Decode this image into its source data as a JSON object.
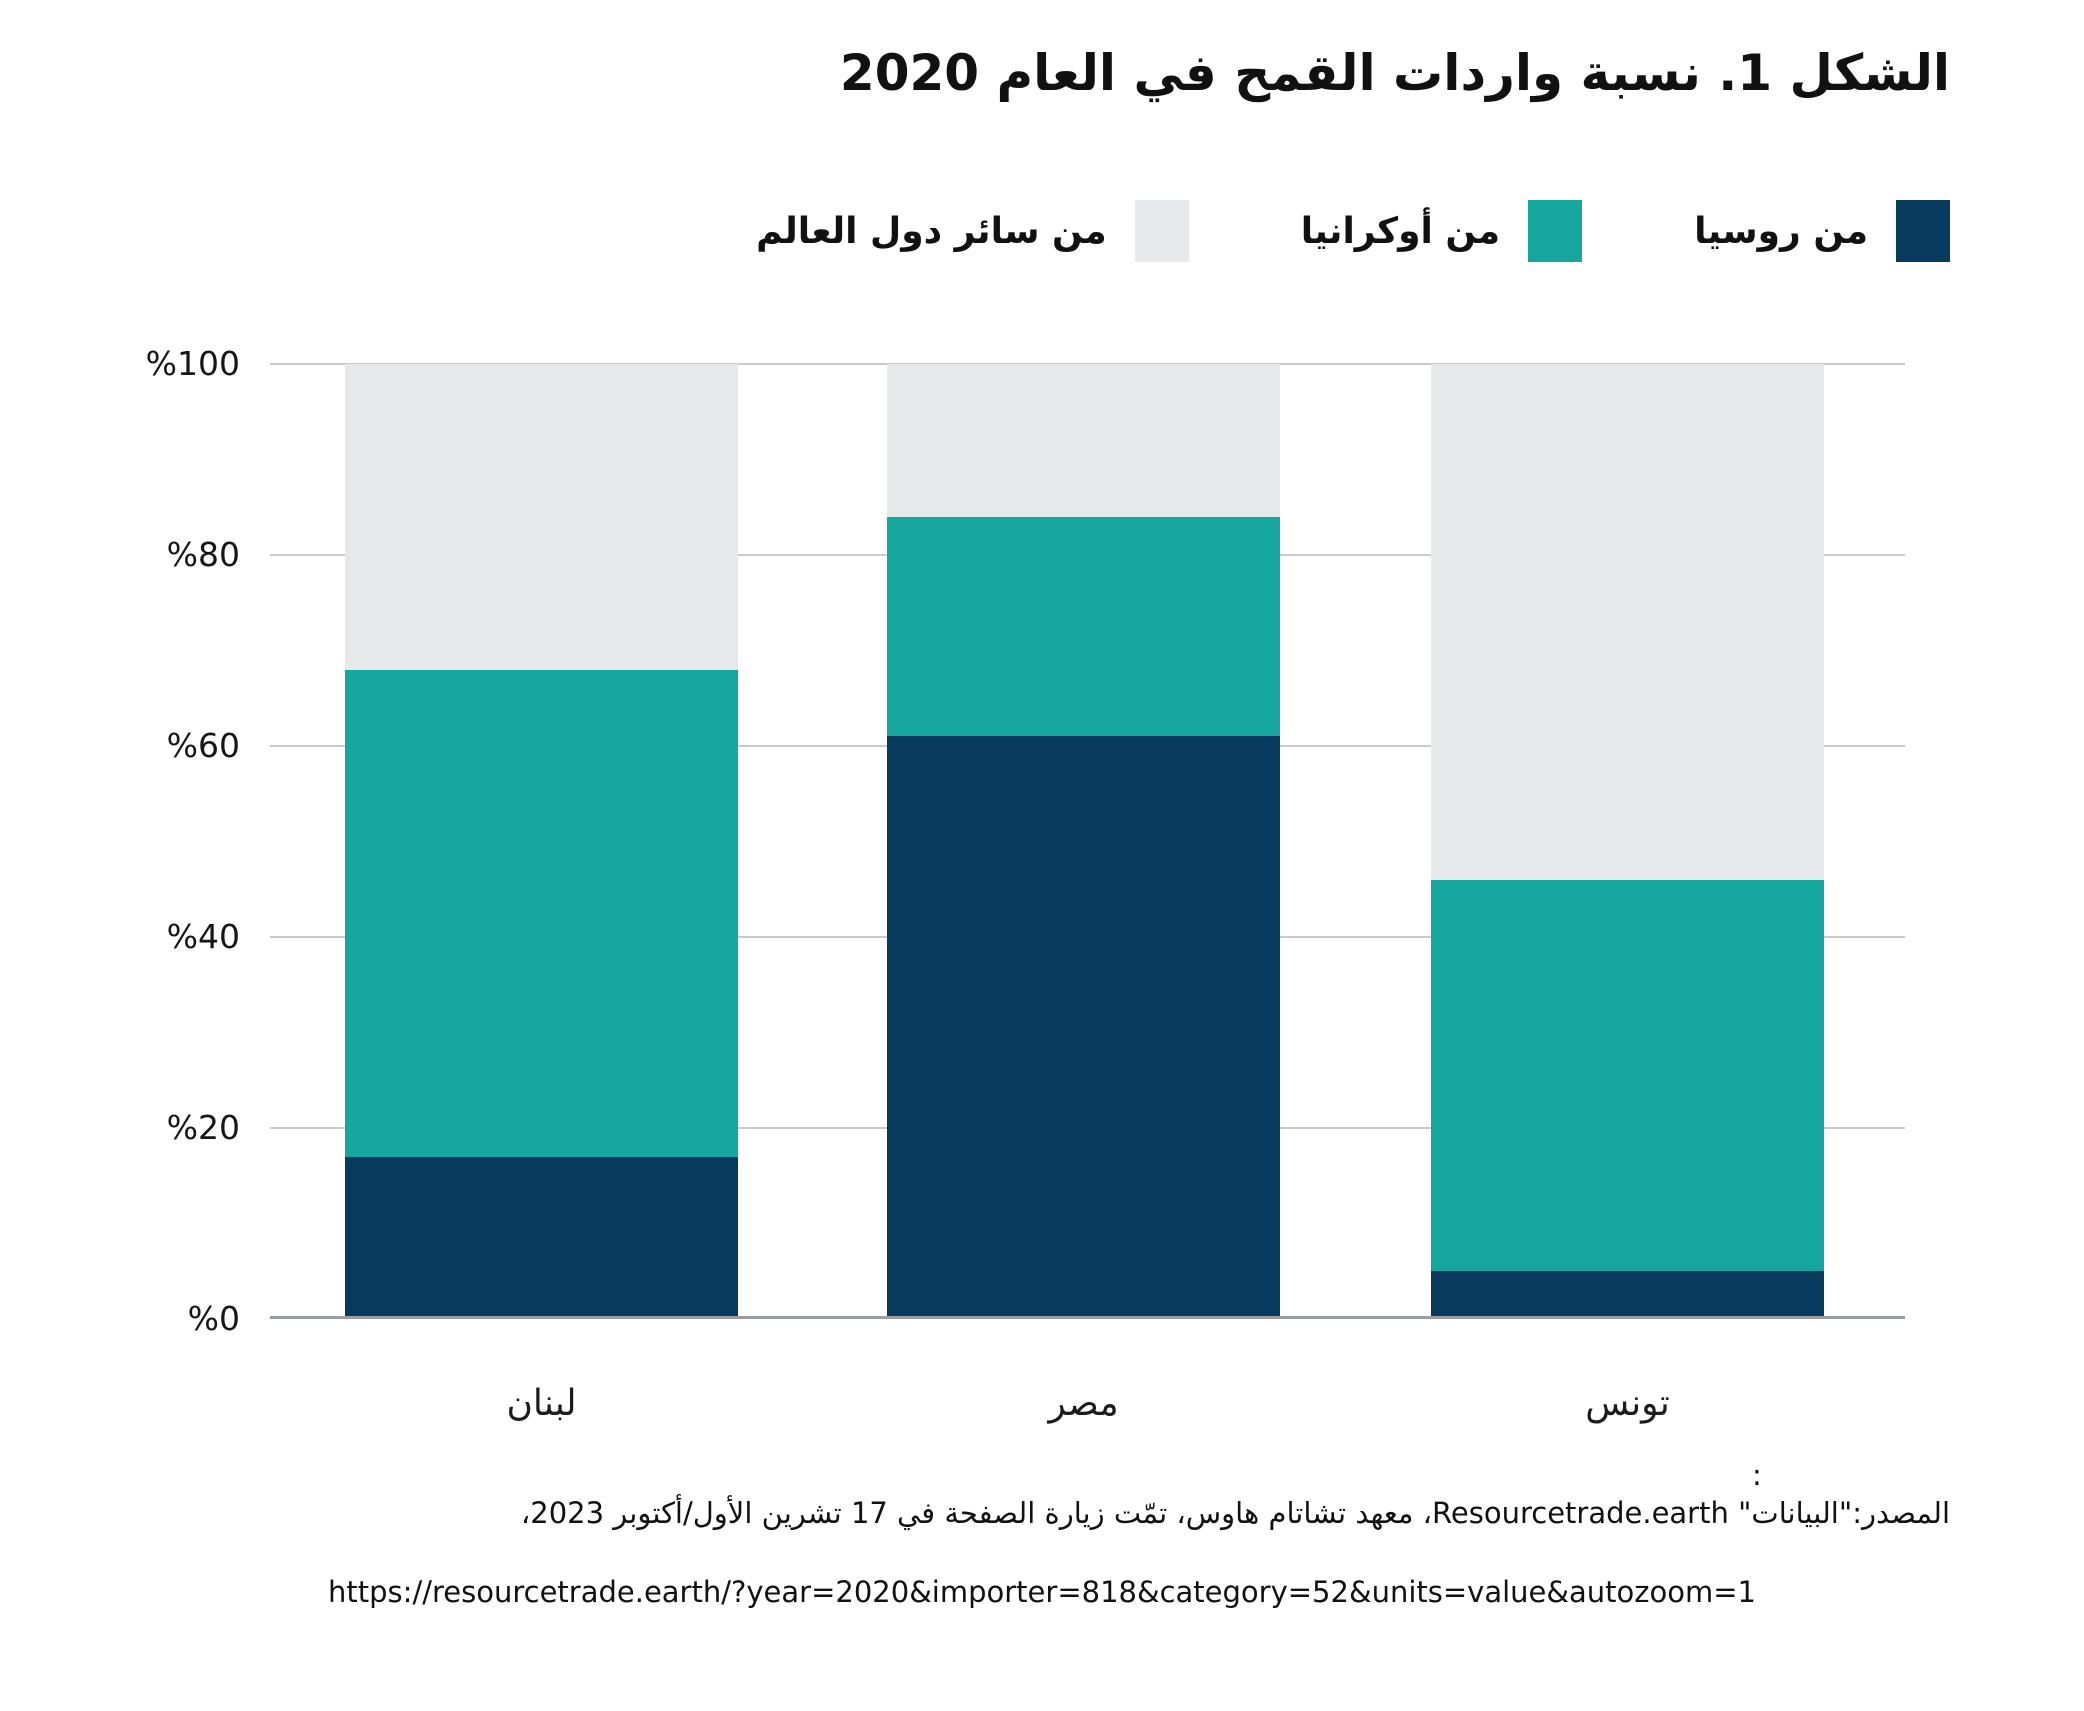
{
  "chart_data": {
    "type": "bar",
    "stacked": true,
    "title": "الشكل 1. نسبة واردات القمح في العام 2020",
    "categories": [
      "لبنان",
      "مصر",
      "تونس"
    ],
    "series": [
      {
        "name": "من روسيا",
        "color": "#083A5E",
        "values": [
          17,
          61,
          5
        ]
      },
      {
        "name": "من أوكرانيا",
        "color": "#15A79D",
        "values": [
          51,
          23,
          41
        ]
      },
      {
        "name": "من سائر دول العالم",
        "color": "#E6E8E9",
        "values": [
          32,
          16,
          54
        ]
      }
    ],
    "y_ticks": [
      {
        "value": 0,
        "label": "%0"
      },
      {
        "value": 20,
        "label": "%20"
      },
      {
        "value": 40,
        "label": "%40"
      },
      {
        "value": 60,
        "label": "%60"
      },
      {
        "value": 80,
        "label": "%80"
      },
      {
        "value": 100,
        "label": "%100"
      }
    ],
    "ylim": [
      0,
      100
    ],
    "units": "percent",
    "grid": true,
    "legend_position": "top-right"
  },
  "source": {
    "colon": ":",
    "line1": "المصدر:\"البيانات\" Resourcetrade.earth، معهد تشاتام هاوس، تمّت زيارة الصفحة في 17 تشرين الأول/أكتوبر 2023،",
    "url": "https://resourcetrade.earth/?year=2020&importer=818&category=52&units=value&autozoom=1"
  },
  "colors": {
    "russia": "#083A5E",
    "ukraine": "#15A79D",
    "rest_of_world": "#E6E8E9",
    "gridline": "#C8CACC",
    "axis_line": "#9B9EA0",
    "text": "#111111"
  }
}
